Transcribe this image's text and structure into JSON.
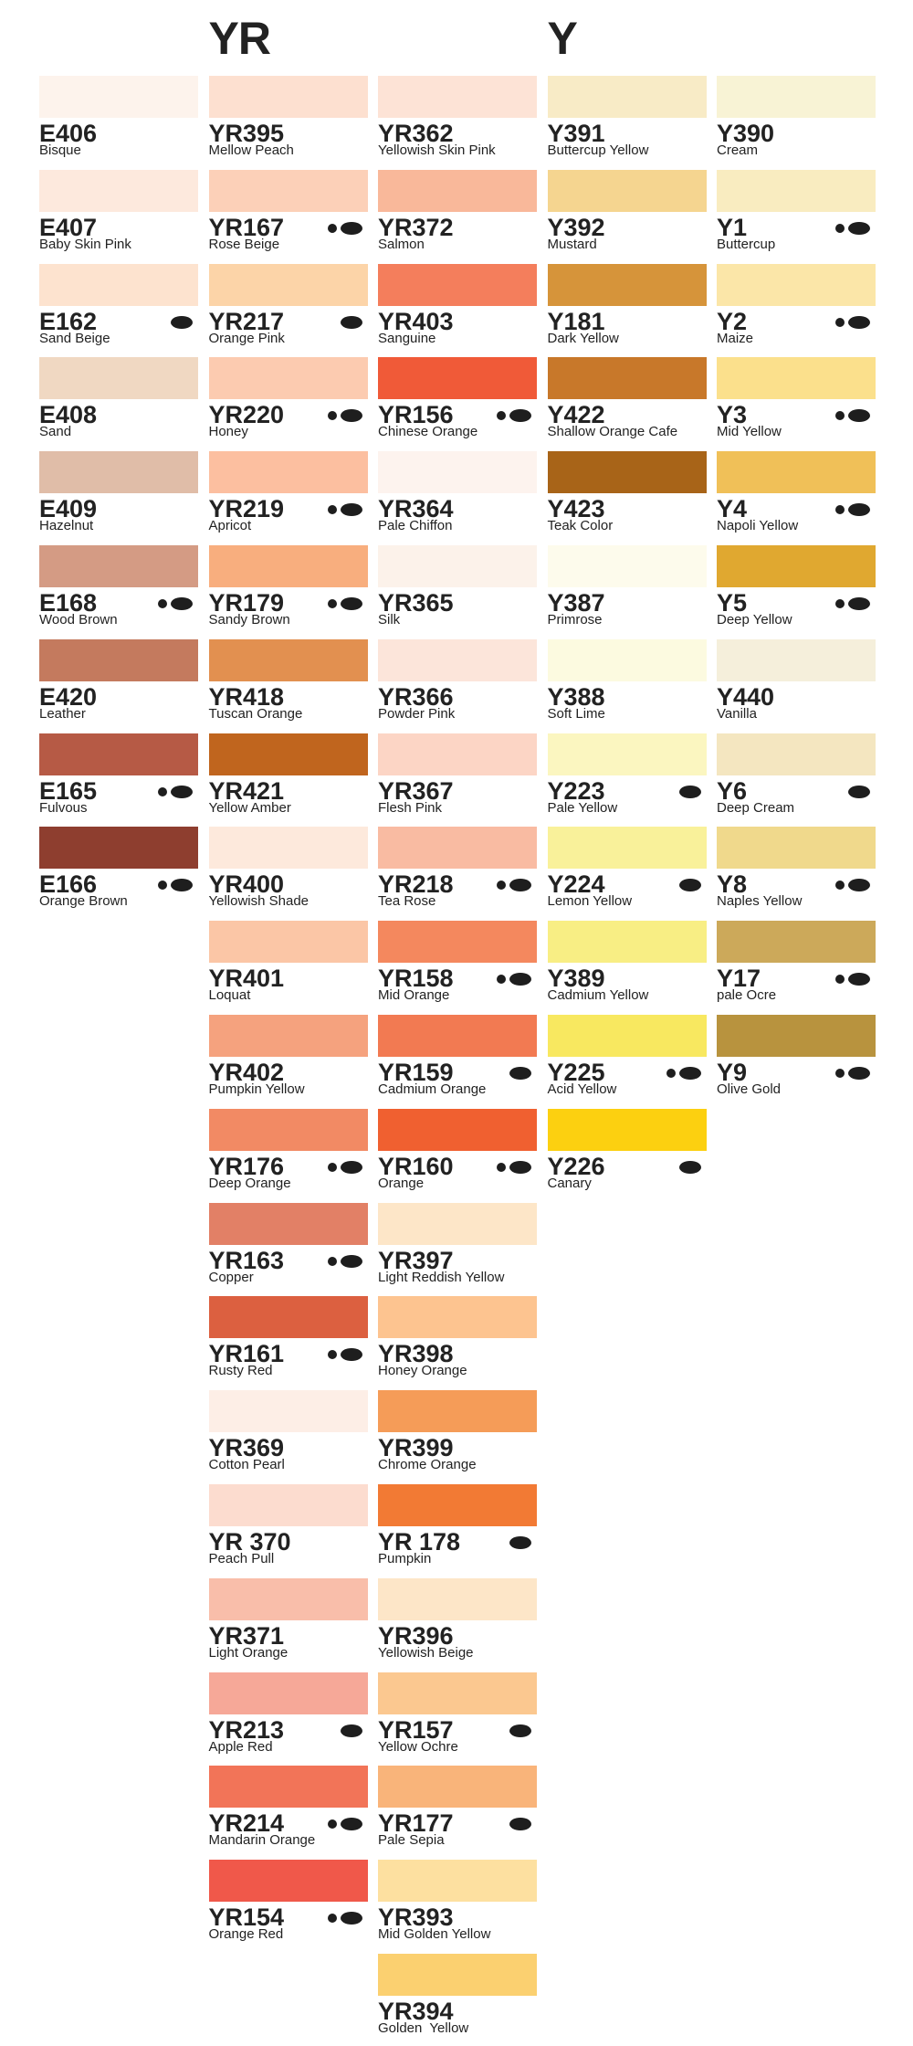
{
  "columns": [
    {
      "items": [
        {
          "code": "E406",
          "name": "Bisque",
          "color": "#fdf3ec",
          "dots": 0
        },
        {
          "code": "E407",
          "name": "Baby Skin Pink",
          "color": "#fde9dd",
          "dots": 0
        },
        {
          "code": "E162",
          "name": "Sand Beige",
          "color": "#fde3cf",
          "dots": 1
        },
        {
          "code": "E408",
          "name": "Sand",
          "color": "#f0d8c2",
          "dots": 0
        },
        {
          "code": "E409",
          "name": "Hazelnut",
          "color": "#e0bda8",
          "dots": 0
        },
        {
          "code": "E168",
          "name": "Wood Brown",
          "color": "#d49b84",
          "dots": 2
        },
        {
          "code": "E420",
          "name": "Leather",
          "color": "#c47a5e",
          "dots": 0
        },
        {
          "code": "E165",
          "name": "Fulvous",
          "color": "#b65a45",
          "dots": 2
        },
        {
          "code": "E166",
          "name": "Orange Brown",
          "color": "#8e3e2f",
          "dots": 2
        }
      ]
    },
    {
      "header": "YR",
      "items": [
        {
          "code": "YR395",
          "name": "Mellow Peach",
          "color": "#fde0d0",
          "dots": 0
        },
        {
          "code": "YR167",
          "name": "Rose Beige",
          "color": "#fcd0b8",
          "dots": 2
        },
        {
          "code": "YR217",
          "name": "Orange Pink",
          "color": "#fcd4a8",
          "dots": 1
        },
        {
          "code": "YR220",
          "name": "Honey",
          "color": "#fccbb0",
          "dots": 2
        },
        {
          "code": "YR219",
          "name": "Apricot",
          "color": "#fcbfa0",
          "dots": 2
        },
        {
          "code": "YR179",
          "name": "Sandy Brown",
          "color": "#f8ae7e",
          "dots": 2
        },
        {
          "code": "YR418",
          "name": "Tuscan Orange",
          "color": "#e29050",
          "dots": 0
        },
        {
          "code": "YR421",
          "name": "Yellow Amber",
          "color": "#c0651e",
          "dots": 0
        },
        {
          "code": "YR400",
          "name": "Yellowish Shade",
          "color": "#fde9dc",
          "dots": 0
        },
        {
          "code": "YR401",
          "name": "Loquat",
          "color": "#fbc6a6",
          "dots": 0
        },
        {
          "code": "YR402",
          "name": "Pumpkin Yellow",
          "color": "#f5a27e",
          "dots": 0
        },
        {
          "code": "YR176",
          "name": "Deep Orange",
          "color": "#f28a64",
          "dots": 2
        },
        {
          "code": "YR163",
          "name": "Copper",
          "color": "#e28066",
          "dots": 2
        },
        {
          "code": "YR161",
          "name": "Rusty Red",
          "color": "#dc6040",
          "dots": 2
        },
        {
          "code": "YR369",
          "name": "Cotton Pearl",
          "color": "#fdeee6",
          "dots": 0
        },
        {
          "code": "YR 370",
          "name": "Peach Pull",
          "color": "#fcdccf",
          "dots": 0
        },
        {
          "code": "YR371",
          "name": "Light Orange",
          "color": "#f9beaa",
          "dots": 0
        },
        {
          "code": "YR213",
          "name": "Apple Red",
          "color": "#f6a898",
          "dots": 1
        },
        {
          "code": "YR214",
          "name": "Mandarin Orange",
          "color": "#f27458",
          "dots": 2
        },
        {
          "code": "YR154",
          "name": "Orange Red",
          "color": "#f0584a",
          "dots": 2
        }
      ]
    },
    {
      "items": [
        {
          "code": "YR362",
          "name": "Yellowish Skin Pink",
          "color": "#fde3d6",
          "dots": 0
        },
        {
          "code": "YR372",
          "name": "Salmon",
          "color": "#f9b89a",
          "dots": 0
        },
        {
          "code": "YR403",
          "name": "Sanguine",
          "color": "#f47e5c",
          "dots": 0
        },
        {
          "code": "YR156",
          "name": "Chinese Orange",
          "color": "#f05a38",
          "dots": 2
        },
        {
          "code": "YR364",
          "name": "Pale Chiffon",
          "color": "#fdf3ee",
          "dots": 0
        },
        {
          "code": "YR365",
          "name": "Silk",
          "color": "#fcf2ea",
          "dots": 0
        },
        {
          "code": "YR366",
          "name": "Powder Pink",
          "color": "#fce5da",
          "dots": 0
        },
        {
          "code": "YR367",
          "name": "Flesh Pink",
          "color": "#fcd5c5",
          "dots": 0
        },
        {
          "code": "YR218",
          "name": "Tea Rose",
          "color": "#f9bba2",
          "dots": 2
        },
        {
          "code": "YR158",
          "name": "Mid Orange",
          "color": "#f4885e",
          "dots": 2
        },
        {
          "code": "YR159",
          "name": "Cadmium Orange",
          "color": "#f27a52",
          "dots": 1
        },
        {
          "code": "YR160",
          "name": "Orange",
          "color": "#f06030",
          "dots": 2
        },
        {
          "code": "YR397",
          "name": "Light Reddish Yellow",
          "color": "#fde6c8",
          "dots": 0
        },
        {
          "code": "YR398",
          "name": "Honey Orange",
          "color": "#fdc490",
          "dots": 0
        },
        {
          "code": "YR399",
          "name": "Chrome Orange",
          "color": "#f59c58",
          "dots": 0
        },
        {
          "code": "YR 178",
          "name": "Pumpkin",
          "color": "#f27a34",
          "dots": 1
        },
        {
          "code": "YR396",
          "name": "Yellowish Beige",
          "color": "#fde6c8",
          "dots": 0
        },
        {
          "code": "YR157",
          "name": "Yellow Ochre",
          "color": "#fbc890",
          "dots": 1
        },
        {
          "code": "YR177",
          "name": "Pale Sepia",
          "color": "#f9b47a",
          "dots": 1
        },
        {
          "code": "YR393",
          "name": "Mid Golden Yellow",
          "color": "#fde0a0",
          "dots": 0
        },
        {
          "code": "YR394",
          "name": "Golden  Yellow",
          "color": "#fbd070",
          "dots": 0
        }
      ]
    },
    {
      "header": "Y",
      "items": [
        {
          "code": "Y391",
          "name": "Buttercup Yellow",
          "color": "#f8ebc6",
          "dots": 0
        },
        {
          "code": "Y392",
          "name": "Mustard",
          "color": "#f5d590",
          "dots": 0
        },
        {
          "code": "Y181",
          "name": "Dark Yellow",
          "color": "#d6943a",
          "dots": 0
        },
        {
          "code": "Y422",
          "name": "Shallow Orange Cafe",
          "color": "#c8782a",
          "dots": 0
        },
        {
          "code": "Y423",
          "name": "Teak Color",
          "color": "#a86418",
          "dots": 0
        },
        {
          "code": "Y387",
          "name": "Primrose",
          "color": "#fdfbec",
          "dots": 0
        },
        {
          "code": "Y388",
          "name": "Soft Lime",
          "color": "#fcfae0",
          "dots": 0
        },
        {
          "code": "Y223",
          "name": "Pale Yellow",
          "color": "#fbf6c0",
          "dots": 1
        },
        {
          "code": "Y224",
          "name": "Lemon Yellow",
          "color": "#f9f19a",
          "dots": 1
        },
        {
          "code": "Y389",
          "name": "Cadmium Yellow",
          "color": "#f8ee84",
          "dots": 0
        },
        {
          "code": "Y225",
          "name": "Acid Yellow",
          "color": "#f8e860",
          "dots": 2
        },
        {
          "code": "Y226",
          "name": "Canary",
          "color": "#fcd010",
          "dots": 1
        }
      ]
    },
    {
      "items": [
        {
          "code": "Y390",
          "name": "Cream",
          "color": "#f8f3d5",
          "dots": 0
        },
        {
          "code": "Y1",
          "name": "Buttercup",
          "color": "#f9ecc0",
          "dots": 2
        },
        {
          "code": "Y2",
          "name": "Maize",
          "color": "#fbe6a8",
          "dots": 2
        },
        {
          "code": "Y3",
          "name": "Mid Yellow",
          "color": "#fbe08c",
          "dots": 2
        },
        {
          "code": "Y4",
          "name": "Napoli Yellow",
          "color": "#f0c058",
          "dots": 2
        },
        {
          "code": "Y5",
          "name": "Deep Yellow",
          "color": "#e0a830",
          "dots": 2
        },
        {
          "code": "Y440",
          "name": "Vanilla",
          "color": "#f5efdb",
          "dots": 0
        },
        {
          "code": "Y6",
          "name": "Deep Cream",
          "color": "#f4e6c0",
          "dots": 1
        },
        {
          "code": "Y8",
          "name": "Naples Yellow",
          "color": "#f0d98c",
          "dots": 2
        },
        {
          "code": "Y17",
          "name": "pale Ocre",
          "color": "#cca95a",
          "dots": 2
        },
        {
          "code": "Y9",
          "name": "Olive Gold",
          "color": "#b8933e",
          "dots": 2
        }
      ]
    }
  ]
}
